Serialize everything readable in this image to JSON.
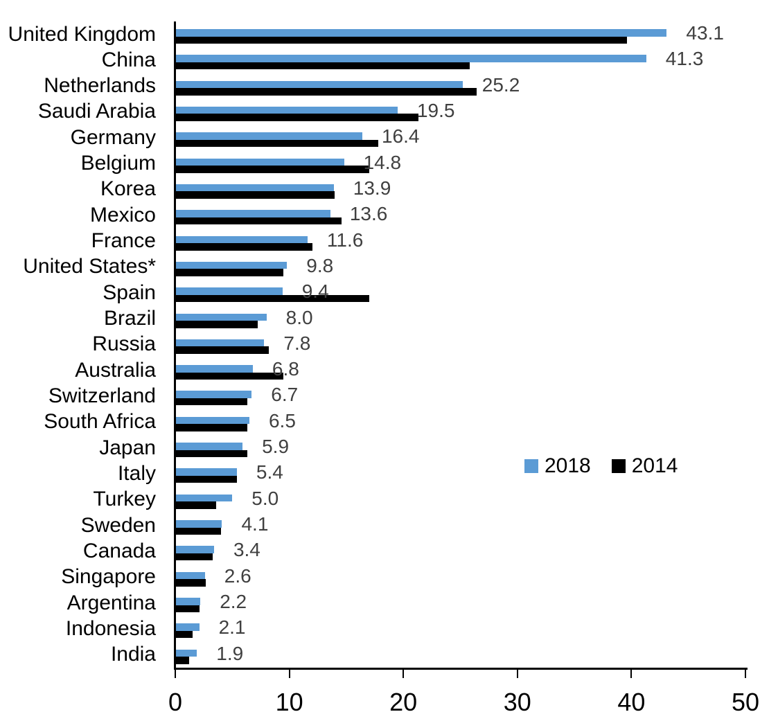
{
  "chart_data": {
    "type": "bar",
    "orientation": "horizontal",
    "title": "",
    "xlabel": "",
    "ylabel": "",
    "grid": false,
    "xlim": [
      0,
      50
    ],
    "x_ticks": [
      0,
      10,
      20,
      30,
      40,
      50
    ],
    "x_tick_labels": [
      "0",
      "10",
      "20",
      "30",
      "40",
      "50"
    ],
    "categories": [
      "United Kingdom",
      "China",
      "Netherlands",
      "Saudi Arabia",
      "Germany",
      "Belgium",
      "Korea",
      "Mexico",
      "France",
      "United States*",
      "Spain",
      "Brazil",
      "Russia",
      "Australia",
      "Switzerland",
      "South Africa",
      "Japan",
      "Italy",
      "Turkey",
      "Sweden",
      "Canada",
      "Singapore",
      "Argentina",
      "Indonesia",
      "India"
    ],
    "series": [
      {
        "name": "2018",
        "color": "#5B9BD5",
        "values": [
          43.1,
          41.3,
          25.2,
          19.5,
          16.4,
          14.8,
          13.9,
          13.6,
          11.6,
          9.8,
          9.4,
          8.0,
          7.8,
          6.8,
          6.7,
          6.5,
          5.9,
          5.4,
          5.0,
          4.1,
          3.4,
          2.6,
          2.2,
          2.1,
          1.9
        ]
      },
      {
        "name": "2014",
        "color": "#000000",
        "values": [
          39.6,
          25.8,
          26.4,
          21.3,
          17.8,
          17.0,
          14.0,
          14.6,
          12.0,
          9.5,
          17.0,
          7.2,
          8.2,
          9.5,
          6.3,
          6.3,
          6.3,
          5.4,
          3.6,
          4.0,
          3.3,
          2.7,
          2.1,
          1.5,
          1.2
        ]
      }
    ],
    "data_labels": {
      "series": "2018",
      "values": [
        "43.1",
        "41.3",
        "25.2",
        "19.5",
        "16.4",
        "14.8",
        "13.9",
        "13.6",
        "11.6",
        "9.8",
        "9.4",
        "8.0",
        "7.8",
        "6.8",
        "6.7",
        "6.5",
        "5.9",
        "5.4",
        "5.0",
        "4.1",
        "3.4",
        "2.6",
        "2.2",
        "2.1",
        "1.9"
      ]
    },
    "legend": {
      "position": "middle-right",
      "entries": [
        "2018",
        "2014"
      ]
    }
  },
  "colors": {
    "series_2018": "#5B9BD5",
    "series_2014": "#000000",
    "value_label": "#404040",
    "axis": "#000000",
    "background": "#FFFFFF"
  }
}
